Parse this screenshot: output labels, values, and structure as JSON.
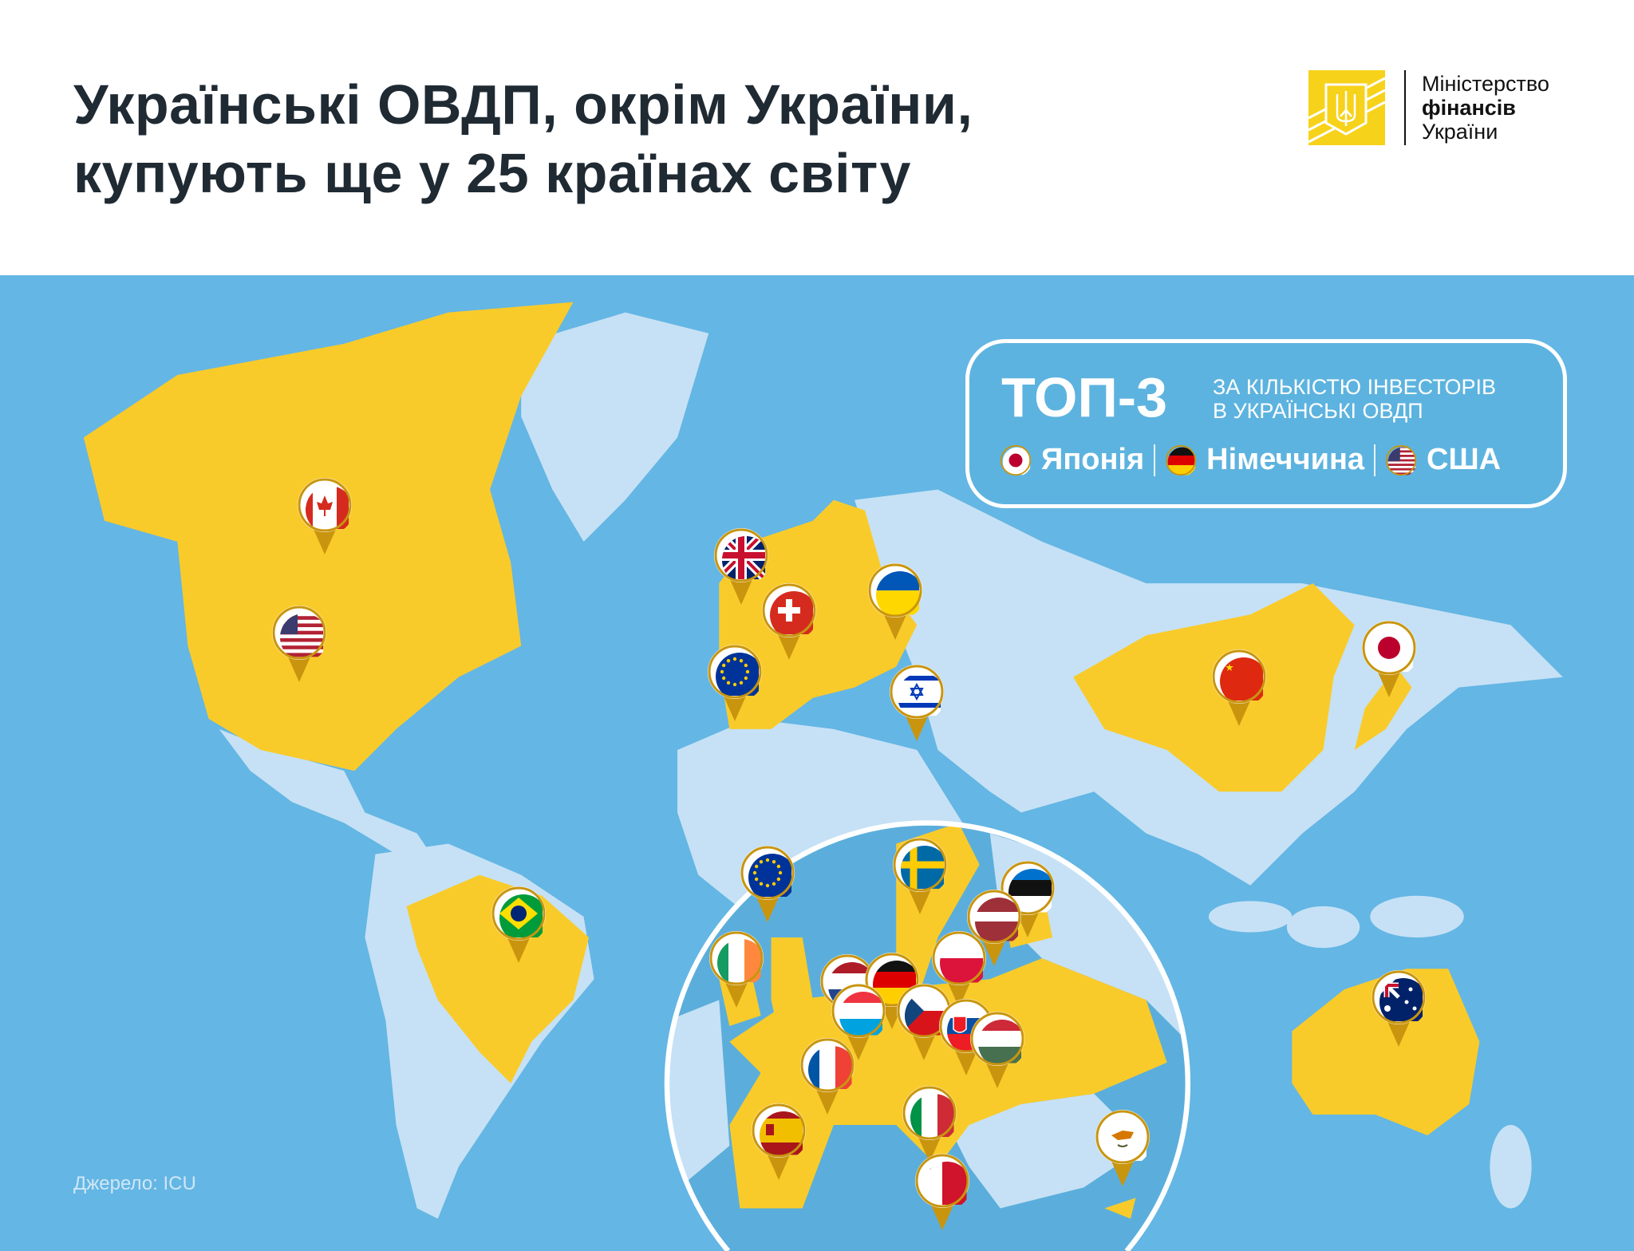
{
  "header": {
    "title_line1": "Українські ОВДП, окрім України,",
    "title_line2": "купують ще у 25 країнах світу",
    "logo": {
      "line1": "Міністерство",
      "line2": "фінансів",
      "line3": "України"
    }
  },
  "colors": {
    "ocean": "#64B6E4",
    "highlight_land": "#F9CB2A",
    "other_land": "#C6E1F5",
    "pin_border": "#C9950E",
    "logo_yellow": "#F7D21A"
  },
  "top3": {
    "big": "ТОП-3",
    "sub_line1": "ЗА КІЛЬКІСТЮ ІНВЕСТОРІВ",
    "sub_line2": "В УКРАЇНСЬКІ ОВДП",
    "countries": [
      {
        "label": "Японія",
        "flag": "jp"
      },
      {
        "label": "Німеччина",
        "flag": "de"
      },
      {
        "label": "США",
        "flag": "us"
      }
    ]
  },
  "pins_world": [
    {
      "country": "Canada",
      "flag": "ca"
    },
    {
      "country": "USA",
      "flag": "us"
    },
    {
      "country": "United Kingdom",
      "flag": "gb"
    },
    {
      "country": "Switzerland",
      "flag": "ch"
    },
    {
      "country": "European Union",
      "flag": "eu"
    },
    {
      "country": "Ukraine",
      "flag": "ua"
    },
    {
      "country": "Israel",
      "flag": "il"
    },
    {
      "country": "China",
      "flag": "cn"
    },
    {
      "country": "Japan",
      "flag": "jp"
    },
    {
      "country": "Brazil",
      "flag": "br"
    },
    {
      "country": "Australia",
      "flag": "au"
    }
  ],
  "pins_europe_inset": [
    {
      "country": "European Union",
      "flag": "eu"
    },
    {
      "country": "Sweden",
      "flag": "se"
    },
    {
      "country": "Estonia",
      "flag": "ee"
    },
    {
      "country": "Latvia",
      "flag": "lv"
    },
    {
      "country": "Ireland",
      "flag": "ie"
    },
    {
      "country": "Poland",
      "flag": "pl"
    },
    {
      "country": "Netherlands",
      "flag": "nl"
    },
    {
      "country": "Germany",
      "flag": "de"
    },
    {
      "country": "Luxembourg",
      "flag": "lu"
    },
    {
      "country": "Czechia",
      "flag": "cz"
    },
    {
      "country": "Slovakia",
      "flag": "sk"
    },
    {
      "country": "Hungary",
      "flag": "hu"
    },
    {
      "country": "France",
      "flag": "fr"
    },
    {
      "country": "Italy",
      "flag": "it"
    },
    {
      "country": "Spain",
      "flag": "es"
    },
    {
      "country": "Malta",
      "flag": "mt"
    },
    {
      "country": "Cyprus",
      "flag": "cy"
    }
  ],
  "source": "Джерело: ICU"
}
